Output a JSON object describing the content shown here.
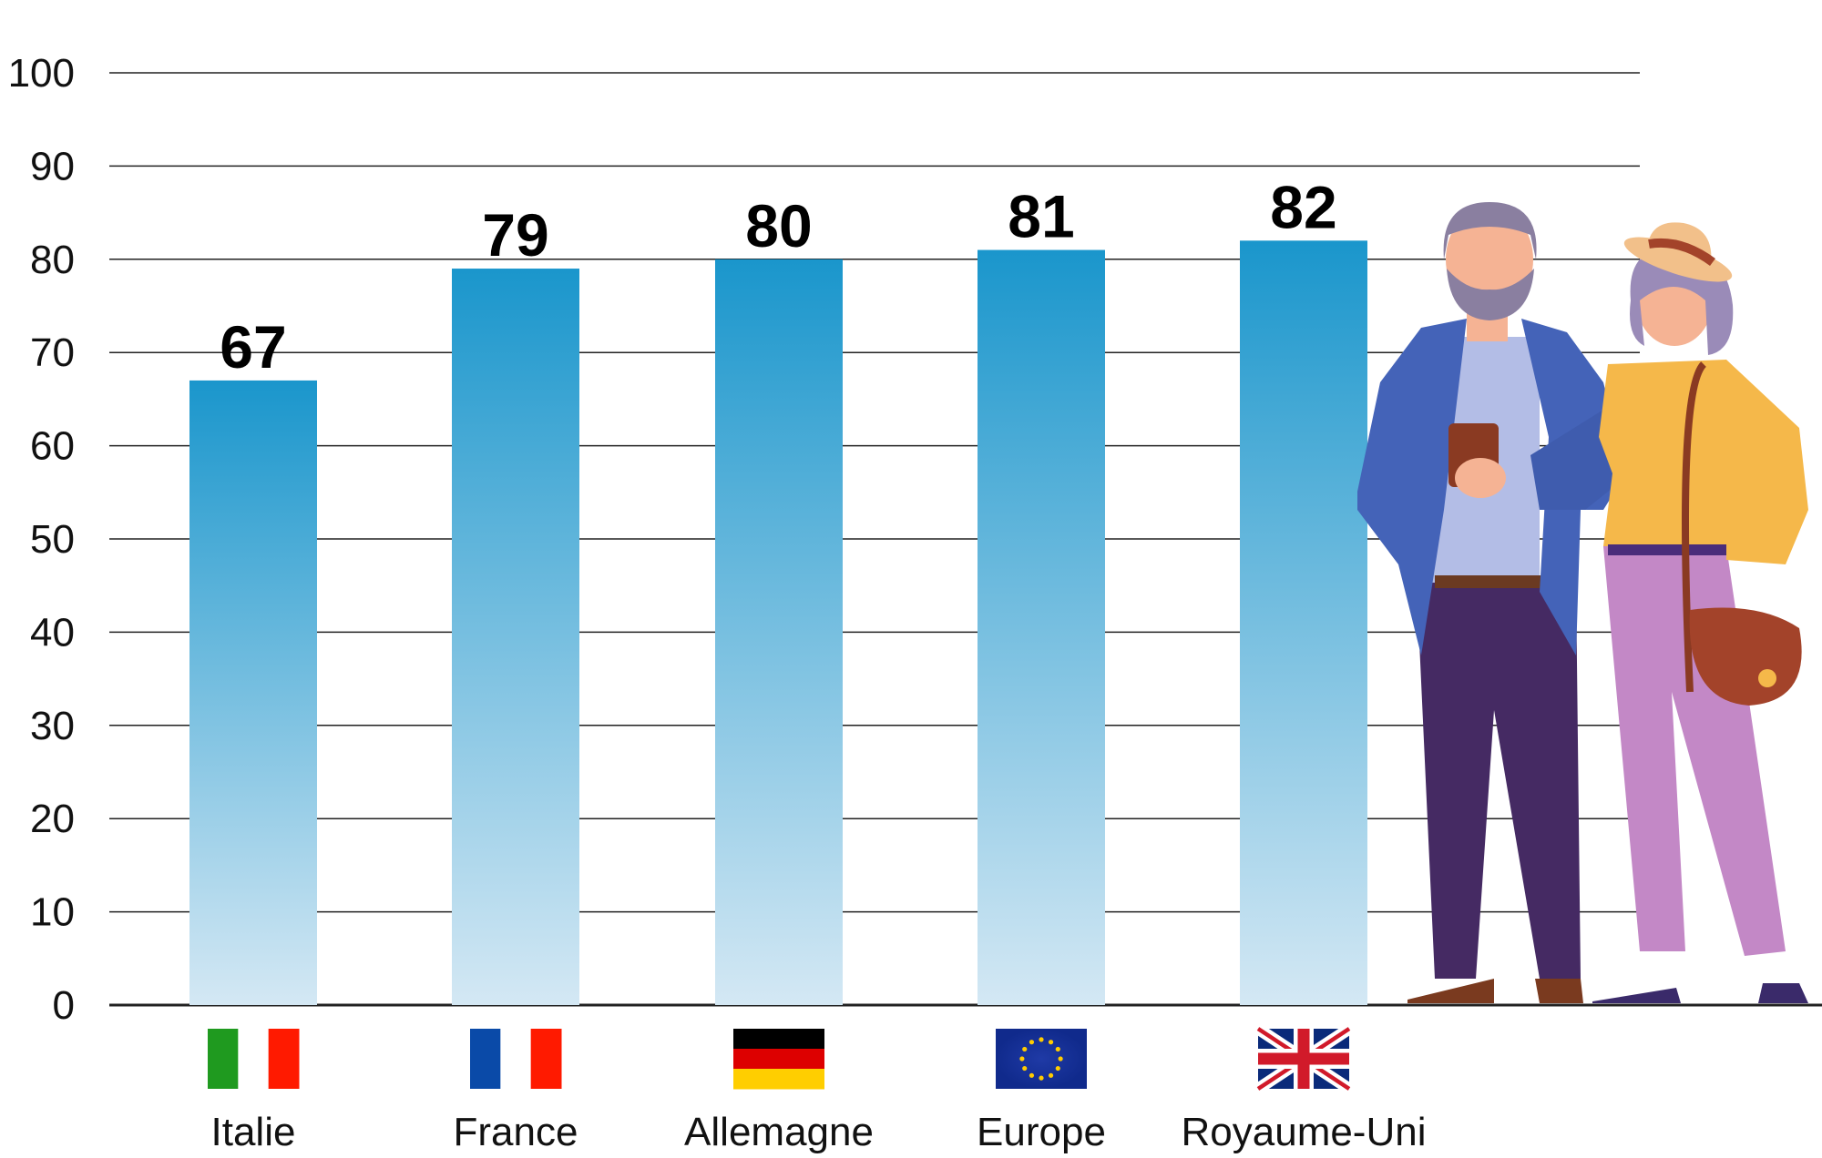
{
  "chart_data": {
    "type": "bar",
    "categories": [
      "Italie",
      "France",
      "Allemagne",
      "Europe",
      "Royaume-Uni"
    ],
    "values": [
      67,
      79,
      80,
      81,
      82
    ],
    "data_labels": [
      "67",
      "79",
      "80",
      "81",
      "82"
    ],
    "ylim": [
      0,
      100
    ],
    "yticks": [
      0,
      10,
      20,
      30,
      40,
      50,
      60,
      70,
      80,
      90,
      100
    ],
    "ytick_labels": [
      "0",
      "10",
      "20",
      "30",
      "40",
      "50",
      "60",
      "70",
      "80",
      "90",
      "100"
    ],
    "grid": true,
    "legend": "none",
    "bar_gradient": [
      "#1a96cc",
      "#d4e8f4"
    ],
    "flags": [
      "italy-flag",
      "france-flag",
      "germany-flag",
      "eu-flag",
      "uk-flag"
    ]
  },
  "illustration": {
    "icon": "senior-couple-illustration"
  }
}
